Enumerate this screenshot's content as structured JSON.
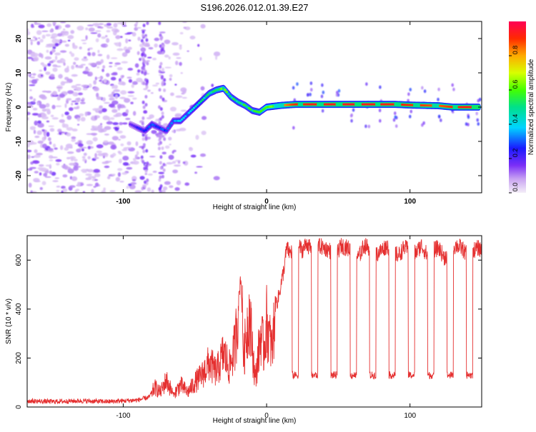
{
  "title": "S196.2026.012.01.39.E27",
  "chart_data": [
    {
      "type": "heatmap",
      "title": "S196.2026.012.01.39.E27",
      "xlabel": "Height of straight line (km)",
      "ylabel": "Frequency (Hz)",
      "xlim": [
        -167,
        150
      ],
      "ylim": [
        -25,
        25
      ],
      "x_ticks": [
        -100,
        0,
        100
      ],
      "y_ticks": [
        -20,
        -10,
        0,
        10,
        20
      ],
      "colorbar": {
        "label": "Normalized spectral amplitude",
        "range": [
          0,
          1
        ],
        "ticks": [
          "0.0",
          "0.2",
          "0.4",
          "0.6",
          "0.8"
        ]
      },
      "ridge": {
        "description_series": "dominant frequency track",
        "x": [
          -95,
          -90,
          -85,
          -80,
          -75,
          -70,
          -65,
          -60,
          -55,
          -50,
          -45,
          -40,
          -35,
          -30,
          -25,
          -20,
          -15,
          -10,
          -5,
          0,
          10,
          20,
          30,
          40,
          50,
          60,
          70,
          80,
          90,
          100,
          110,
          120,
          130,
          140,
          148
        ],
        "y": [
          -5,
          -6,
          -7,
          -5,
          -6,
          -7,
          -4,
          -4,
          -2,
          0,
          2,
          4,
          5,
          5.5,
          3,
          1.5,
          0.5,
          -1,
          -1.5,
          0,
          0.5,
          0.8,
          0.8,
          0.8,
          0.8,
          0.8,
          0.8,
          0.8,
          0.8,
          0.6,
          0.5,
          0.4,
          0,
          0,
          0
        ],
        "amplitude": [
          0.2,
          0.25,
          0.3,
          0.35,
          0.3,
          0.3,
          0.35,
          0.4,
          0.4,
          0.45,
          0.5,
          0.55,
          0.6,
          0.65,
          0.55,
          0.55,
          0.6,
          0.55,
          0.6,
          0.7,
          0.8,
          0.9,
          0.92,
          0.92,
          0.93,
          0.94,
          0.93,
          0.92,
          0.92,
          0.9,
          0.88,
          0.86,
          0.9,
          0.92,
          0.95
        ]
      }
    },
    {
      "type": "line",
      "xlabel": "Height of straight line (km)",
      "ylabel": "SNR (10 * v/v)",
      "xlim": [
        -167,
        150
      ],
      "ylim": [
        0,
        700
      ],
      "x_ticks": [
        -100,
        0,
        100
      ],
      "y_ticks": [
        0,
        200,
        400,
        600
      ],
      "color": "#e53030",
      "series": [
        {
          "name": "SNR",
          "x": [
            -167,
            -150,
            -130,
            -110,
            -90,
            -82,
            -78,
            -74,
            -70,
            -65,
            -60,
            -55,
            -50,
            -45,
            -40,
            -35,
            -30,
            -26,
            -22,
            -18,
            -16,
            -14,
            -12,
            -10,
            -8,
            -6,
            -4,
            -2,
            0,
            2,
            4,
            6,
            8,
            10,
            12,
            14,
            16,
            18,
            20,
            22,
            25,
            28,
            32,
            36,
            40,
            44,
            48,
            52,
            56,
            60,
            64,
            68,
            72,
            76,
            80,
            84,
            88,
            92,
            96,
            100,
            104,
            108,
            112,
            116,
            120,
            124,
            128,
            132,
            136,
            140,
            144,
            148,
            150
          ],
          "y": [
            25,
            22,
            25,
            22,
            28,
            40,
            80,
            60,
            110,
            50,
            90,
            60,
            100,
            130,
            180,
            140,
            220,
            160,
            250,
            540,
            200,
            310,
            380,
            250,
            110,
            200,
            300,
            230,
            350,
            280,
            230,
            420,
            440,
            500,
            560,
            650,
            630,
            640,
            620,
            660,
            640,
            670,
            630,
            660,
            650,
            640,
            620,
            660,
            650,
            640,
            610,
            660,
            650,
            620,
            640,
            660,
            630,
            620,
            650,
            640,
            630,
            660,
            620,
            640,
            650,
            610,
            640,
            660,
            650,
            620,
            640,
            650,
            640
          ]
        }
      ],
      "dips": {
        "x": [
          20,
          33.5,
          47,
          60.5,
          74,
          87.5,
          101,
          114.5,
          128,
          141.5
        ],
        "y": [
          130,
          130,
          130,
          130,
          130,
          130,
          130,
          130,
          130,
          130
        ]
      }
    }
  ]
}
